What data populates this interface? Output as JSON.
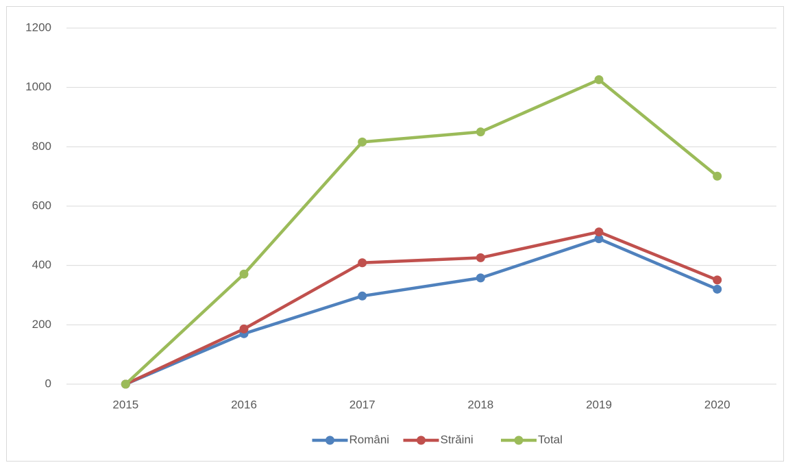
{
  "chart_data": {
    "type": "line",
    "categories": [
      "2015",
      "2016",
      "2017",
      "2018",
      "2019",
      "2020"
    ],
    "series": [
      {
        "name": "Români",
        "color": "#4f81bd",
        "values": [
          0,
          170,
          297,
          358,
          490,
          320
        ]
      },
      {
        "name": "Străini",
        "color": "#c0504d",
        "values": [
          0,
          186,
          409,
          426,
          513,
          351
        ]
      },
      {
        "name": "Total",
        "color": "#9bbb59",
        "values": [
          0,
          371,
          816,
          850,
          1026,
          701
        ]
      }
    ],
    "ylim": [
      0,
      1200
    ],
    "yticks": [
      0,
      200,
      400,
      600,
      800,
      1000,
      1200
    ],
    "grid": true,
    "legend": "bottom"
  }
}
